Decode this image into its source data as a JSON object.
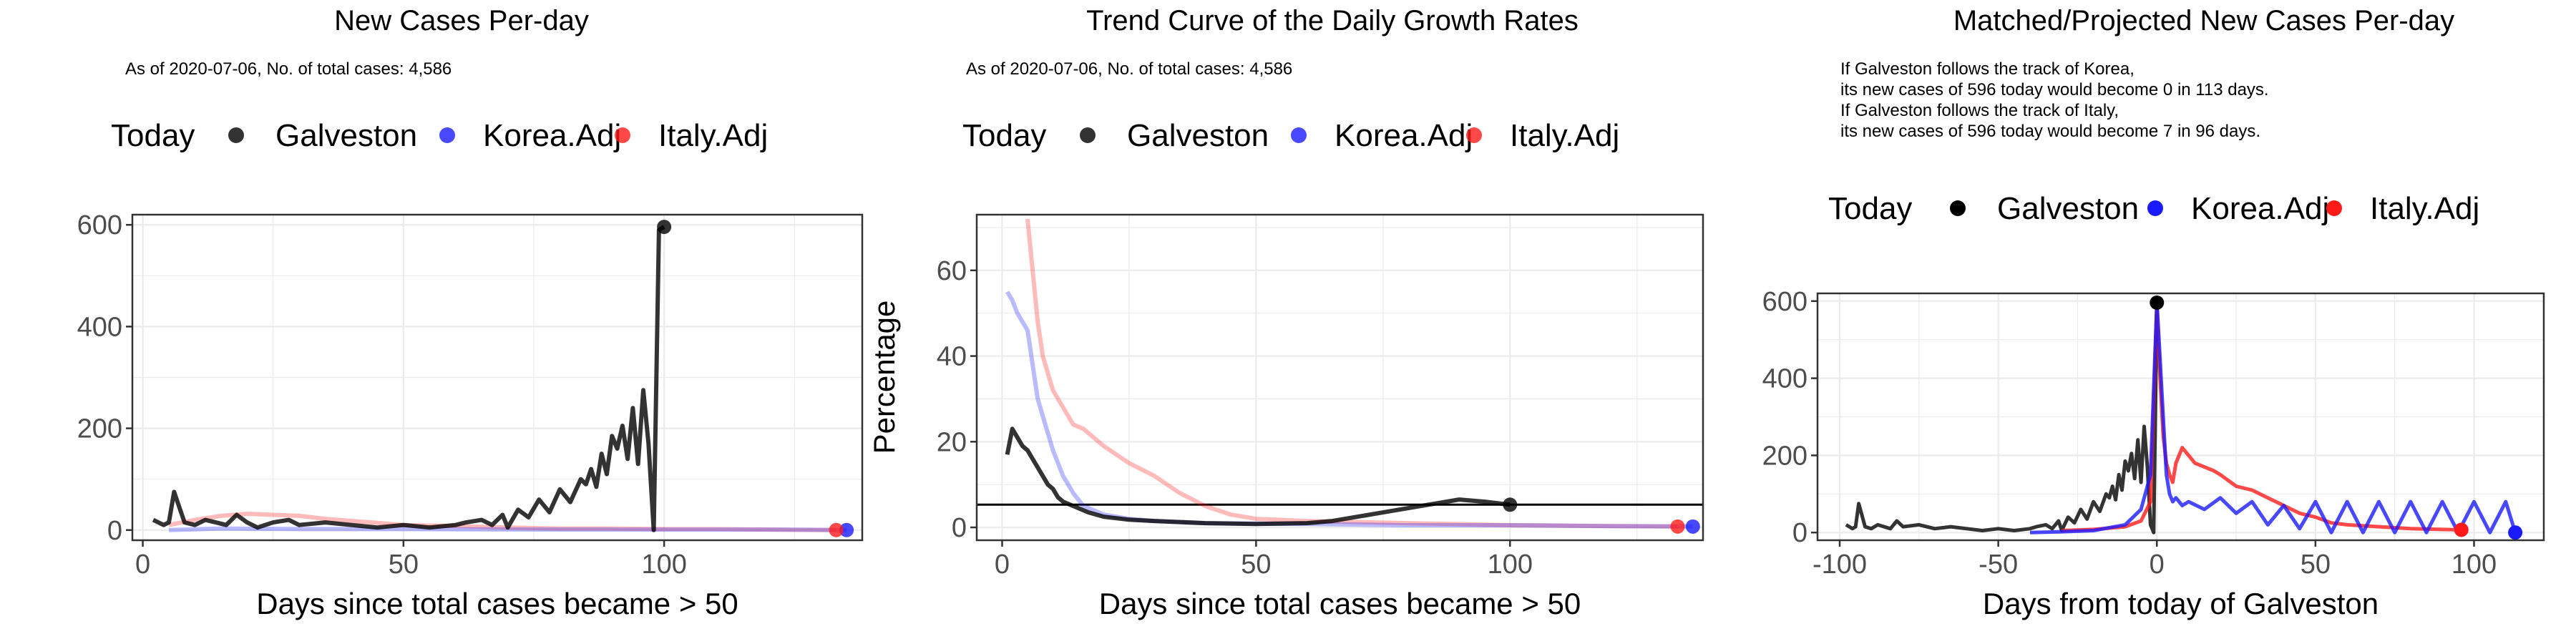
{
  "colors": {
    "galveston": "#000000",
    "korea": "#1a1aff",
    "italy": "#ff1a1a",
    "grid": "#ebebeb"
  },
  "chart_data": [
    {
      "type": "line",
      "title": "New Cases Per-day",
      "subtitle": "As of 2020-07-06, No. of total cases: 4,586",
      "legend": {
        "title": "Today",
        "entries": [
          "Galveston",
          "Korea.Adj",
          "Italy.Adj"
        ],
        "position": "top"
      },
      "xlabel": "Days since total cases became > 50",
      "ylabel": "",
      "xlim": [
        -2,
        138
      ],
      "ylim": [
        -20,
        620
      ],
      "xticks": [
        0,
        50,
        100
      ],
      "yticks": [
        0,
        200,
        400,
        600
      ],
      "series": [
        {
          "name": "Galveston",
          "x": [
            2,
            4,
            5,
            6,
            8,
            10,
            12,
            14,
            16,
            18,
            20,
            22,
            25,
            28,
            30,
            35,
            40,
            45,
            50,
            55,
            60,
            62,
            65,
            67,
            69,
            70,
            72,
            74,
            76,
            78,
            80,
            82,
            84,
            85,
            86,
            87,
            88,
            89,
            90,
            91,
            92,
            93,
            94,
            95,
            96,
            97,
            98,
            99,
            100
          ],
          "y": [
            20,
            10,
            15,
            75,
            15,
            10,
            20,
            15,
            10,
            30,
            15,
            5,
            15,
            20,
            10,
            15,
            10,
            5,
            10,
            5,
            10,
            15,
            20,
            10,
            30,
            5,
            40,
            25,
            60,
            35,
            80,
            55,
            100,
            90,
            120,
            85,
            150,
            110,
            185,
            160,
            205,
            140,
            240,
            130,
            275,
            170,
            0,
            590,
            596
          ]
        },
        {
          "name": "Korea.Adj",
          "x": [
            5,
            15,
            30,
            50,
            80,
            100,
            120,
            135
          ],
          "y": [
            0,
            3,
            2,
            2,
            1,
            1,
            1,
            0
          ]
        },
        {
          "name": "Italy.Adj",
          "x": [
            5,
            10,
            15,
            20,
            25,
            30,
            35,
            40,
            45,
            50,
            60,
            70,
            80,
            90,
            100,
            110,
            120,
            133
          ],
          "y": [
            10,
            20,
            28,
            32,
            30,
            28,
            22,
            18,
            14,
            10,
            8,
            5,
            3,
            3,
            2,
            2,
            1,
            0
          ]
        }
      ],
      "today_points": [
        {
          "name": "Galveston",
          "x": 100,
          "y": 596
        },
        {
          "name": "Korea.Adj",
          "x": 135,
          "y": 0
        },
        {
          "name": "Italy.Adj",
          "x": 133,
          "y": 0
        }
      ]
    },
    {
      "type": "line",
      "title": "Trend Curve of the Daily Growth Rates",
      "subtitle": "As of 2020-07-06, No. of total cases: 4,586",
      "legend": {
        "title": "Today",
        "entries": [
          "Galveston",
          "Korea.Adj",
          "Italy.Adj"
        ],
        "position": "top"
      },
      "xlabel": "Days since total cases became > 50",
      "ylabel": "Percentage",
      "xlim": [
        -5,
        138
      ],
      "ylim": [
        -3,
        73
      ],
      "xticks": [
        0,
        50,
        100
      ],
      "yticks": [
        0,
        20,
        40,
        60
      ],
      "hline": 5.3,
      "series": [
        {
          "name": "Galveston",
          "x": [
            1,
            2,
            3,
            4,
            5,
            6,
            7,
            8,
            9,
            10,
            11,
            12,
            13,
            14,
            15,
            17,
            20,
            25,
            30,
            40,
            50,
            60,
            65,
            70,
            75,
            80,
            85,
            90,
            95,
            100
          ],
          "y": [
            17,
            23,
            21,
            19,
            18,
            16,
            14,
            12,
            10,
            9,
            7,
            6,
            5.5,
            5,
            4.5,
            3.5,
            2.5,
            1.8,
            1.5,
            1,
            0.8,
            1,
            1.5,
            2.5,
            3.5,
            4.5,
            5.5,
            6.5,
            6,
            5.3
          ]
        },
        {
          "name": "Korea.Adj",
          "x": [
            1,
            2,
            3,
            4,
            5,
            6,
            7,
            8,
            9,
            10,
            12,
            14,
            16,
            20,
            25,
            30,
            40,
            60,
            80,
            100,
            120,
            136
          ],
          "y": [
            55,
            53,
            50,
            48,
            46,
            38,
            30,
            26,
            22,
            18,
            12,
            8,
            5,
            3,
            2,
            1.5,
            1,
            0.8,
            0.5,
            0.5,
            0.3,
            0.2
          ]
        },
        {
          "name": "Italy.Adj",
          "x": [
            5,
            6,
            7,
            8,
            9,
            10,
            12,
            14,
            16,
            18,
            20,
            25,
            30,
            35,
            40,
            45,
            50,
            60,
            80,
            100,
            120,
            133
          ],
          "y": [
            72,
            60,
            48,
            40,
            36,
            32,
            28,
            24,
            23,
            21,
            19,
            15,
            12,
            8,
            5,
            3,
            2,
            1.5,
            1,
            0.5,
            0.3,
            0.2
          ]
        }
      ],
      "today_points": [
        {
          "name": "Galveston",
          "x": 100,
          "y": 5.3
        },
        {
          "name": "Korea.Adj",
          "x": 136,
          "y": 0.2
        },
        {
          "name": "Italy.Adj",
          "x": 133,
          "y": 0.2
        }
      ]
    },
    {
      "type": "line",
      "title": "Matched/Projected New Cases Per-day",
      "subtitle": [
        "If Galveston follows the track of Korea,",
        "its new cases of 596 today would become 0 in 113 days.",
        "If Galveston follows the track of Italy,",
        "its new cases of 596 today would become 7 in 96 days."
      ],
      "legend": {
        "title": "Today",
        "entries": [
          "Galveston",
          "Korea.Adj",
          "Italy.Adj"
        ],
        "position": "top"
      },
      "xlabel": "Days from today of Galveston",
      "ylabel": "",
      "xlim": [
        -107,
        122
      ],
      "ylim": [
        -20,
        620
      ],
      "xticks": [
        -100,
        -50,
        0,
        50,
        100
      ],
      "yticks": [
        0,
        200,
        400,
        600
      ],
      "series": [
        {
          "name": "Galveston",
          "x": [
            -98,
            -96,
            -95,
            -94,
            -92,
            -90,
            -88,
            -86,
            -84,
            -82,
            -80,
            -75,
            -70,
            -65,
            -60,
            -55,
            -50,
            -45,
            -40,
            -38,
            -35,
            -33,
            -31,
            -30,
            -28,
            -26,
            -24,
            -22,
            -20,
            -18,
            -16,
            -15,
            -14,
            -13,
            -12,
            -11,
            -10,
            -9,
            -8,
            -7,
            -6,
            -5,
            -4,
            -3,
            -2,
            -1,
            0
          ],
          "y": [
            20,
            10,
            15,
            75,
            15,
            10,
            20,
            15,
            10,
            30,
            15,
            20,
            10,
            15,
            10,
            5,
            10,
            5,
            10,
            15,
            20,
            10,
            30,
            5,
            40,
            25,
            60,
            35,
            80,
            55,
            100,
            90,
            120,
            85,
            150,
            110,
            185,
            160,
            205,
            140,
            240,
            130,
            275,
            170,
            20,
            0,
            596
          ]
        },
        {
          "name": "Korea.Adj",
          "x": [
            -40,
            -30,
            -20,
            -10,
            -5,
            -2,
            0,
            1,
            2,
            3,
            4,
            5,
            6,
            8,
            10,
            15,
            20,
            25,
            30,
            35,
            40,
            45,
            50,
            55,
            60,
            65,
            70,
            75,
            80,
            85,
            90,
            95,
            100,
            105,
            110,
            113
          ],
          "y": [
            0,
            2,
            5,
            20,
            60,
            150,
            596,
            450,
            300,
            150,
            100,
            80,
            90,
            70,
            80,
            60,
            90,
            50,
            80,
            20,
            70,
            10,
            80,
            0,
            80,
            0,
            80,
            0,
            80,
            0,
            80,
            0,
            80,
            0,
            80,
            0
          ]
        },
        {
          "name": "Italy.Adj",
          "x": [
            -30,
            -20,
            -10,
            -5,
            -2,
            0,
            1,
            2,
            3,
            4,
            5,
            6,
            8,
            10,
            12,
            15,
            18,
            20,
            25,
            30,
            35,
            40,
            45,
            50,
            55,
            60,
            70,
            80,
            90,
            96
          ],
          "y": [
            5,
            8,
            15,
            30,
            80,
            596,
            400,
            250,
            180,
            150,
            130,
            180,
            220,
            200,
            180,
            170,
            160,
            150,
            120,
            110,
            90,
            70,
            50,
            40,
            25,
            20,
            15,
            10,
            8,
            7
          ]
        }
      ],
      "today_points": [
        {
          "name": "Galveston",
          "x": 0,
          "y": 596
        },
        {
          "name": "Korea.Adj",
          "x": 113,
          "y": 0
        },
        {
          "name": "Italy.Adj",
          "x": 96,
          "y": 7
        }
      ]
    }
  ]
}
